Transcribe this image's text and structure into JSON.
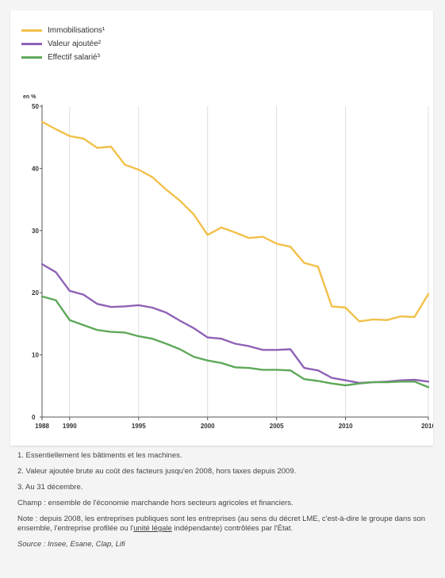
{
  "chart_data": {
    "type": "line",
    "unit_label": "en %",
    "x": [
      1988,
      1989,
      1990,
      1991,
      1992,
      1993,
      1994,
      1995,
      1996,
      1997,
      1998,
      1999,
      2000,
      2001,
      2002,
      2003,
      2004,
      2005,
      2006,
      2007,
      2008,
      2009,
      2010,
      2011,
      2012,
      2013,
      2014,
      2015,
      2016
    ],
    "xticks": [
      "1988",
      "1990",
      "1995",
      "2000",
      "2005",
      "2010",
      "2016"
    ],
    "xtick_values": [
      1988,
      1990,
      1995,
      2000,
      2005,
      2010,
      2016
    ],
    "yticks": [
      "0",
      "10",
      "20",
      "30",
      "40",
      "50"
    ],
    "ylim": [
      0,
      50
    ],
    "xlim": [
      1988,
      2016
    ],
    "grid": "vertical",
    "legend_position": "top-left",
    "series": [
      {
        "name": "Immobilisations¹",
        "color": "#f2c04a",
        "values": [
          47.5,
          46.3,
          45.2,
          44.8,
          43.3,
          43.5,
          40.6,
          39.8,
          38.6,
          36.6,
          34.8,
          32.6,
          29.3,
          30.5,
          29.7,
          28.8,
          29.0,
          27.9,
          27.4,
          24.8,
          24.2,
          17.8,
          17.6,
          15.4,
          15.7,
          15.6,
          16.2,
          16.1,
          19.8
        ]
      },
      {
        "name": "Valeur ajoutée²",
        "color": "#8f62b6",
        "values": [
          24.6,
          23.3,
          20.3,
          19.7,
          18.2,
          17.7,
          17.8,
          18.0,
          17.6,
          16.8,
          15.5,
          14.3,
          12.8,
          12.6,
          11.8,
          11.4,
          10.8,
          10.8,
          10.9,
          7.9,
          7.5,
          6.3,
          5.9,
          5.5,
          5.6,
          5.7,
          5.9,
          6.0,
          5.7
        ]
      },
      {
        "name": "Effectif salarié³",
        "color": "#5ea85a",
        "values": [
          19.4,
          18.8,
          15.6,
          14.8,
          14.0,
          13.7,
          13.6,
          13.0,
          12.6,
          11.8,
          10.9,
          9.7,
          9.1,
          8.7,
          8.0,
          7.9,
          7.6,
          7.6,
          7.5,
          6.1,
          5.8,
          5.4,
          5.1,
          5.4,
          5.6,
          5.6,
          5.7,
          5.7,
          4.8
        ]
      }
    ]
  },
  "notes": {
    "note1": "1. Essentiellement les bâtiments et les machines.",
    "note2": "2. Valeur ajoutée brute au coût des facteurs jusqu'en 2008, hors taxes depuis 2009.",
    "note3": "3. Au 31 décembre.",
    "champ": "Champ : ensemble de l'économie marchande hors secteurs agricoles et financiers.",
    "note_text": "Note : depuis 2008, les entreprises publiques sont les entreprises (au sens du décret LME, c'est-à-dire le groupe dans son ensemble, l'entreprise profilée ou l'",
    "note_link": "unité légale",
    "note_text_end": " indépendante) contrôlées par l'État.",
    "source": "Source : Insee, Esane, Clap, Lifi"
  }
}
